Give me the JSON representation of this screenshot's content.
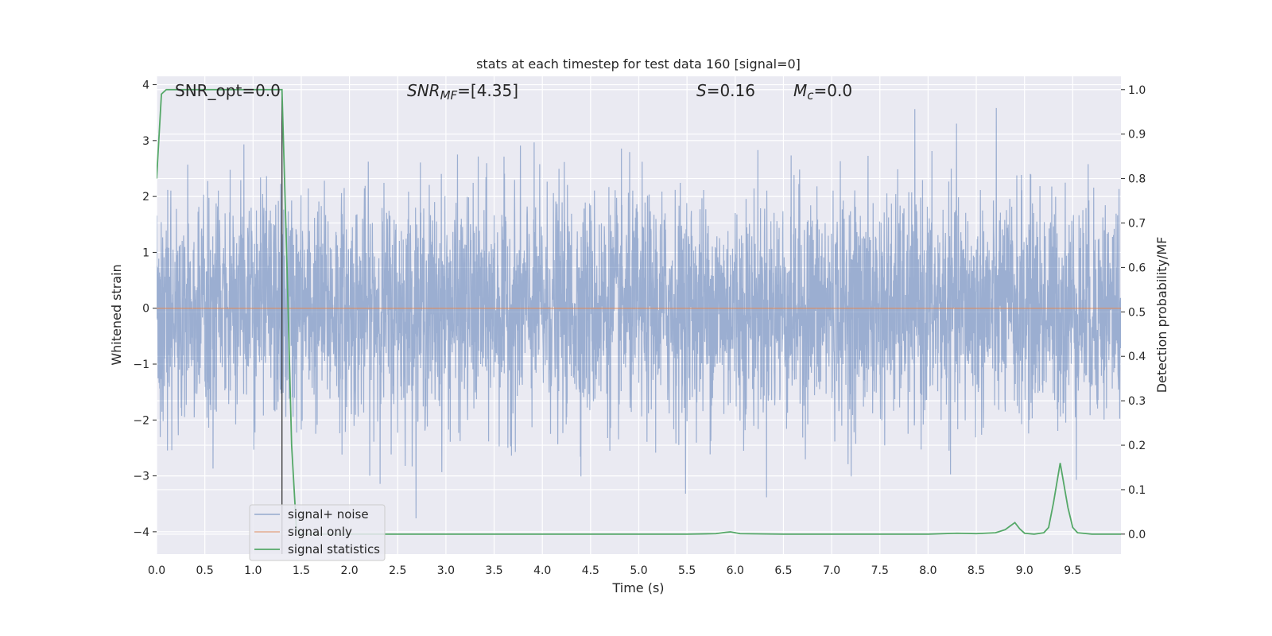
{
  "chart_data": {
    "type": "line",
    "title": "stats at each timestep for test data 160 [signal=0]",
    "xlabel": "Time (s)",
    "ylabel_left": "Whitened strain",
    "ylabel_right": "Detection probability/MF",
    "xlim": [
      0.0,
      10.0
    ],
    "ylim_left": [
      -4.4,
      4.15
    ],
    "ylim_right": [
      -0.045,
      1.03
    ],
    "x_ticks": [
      0.0,
      0.5,
      1.0,
      1.5,
      2.0,
      2.5,
      3.0,
      3.5,
      4.0,
      4.5,
      5.0,
      5.5,
      6.0,
      6.5,
      7.0,
      7.5,
      8.0,
      8.5,
      9.0,
      9.5
    ],
    "x_tick_labels": [
      "0.0",
      "0.5",
      "1.0",
      "1.5",
      "2.0",
      "2.5",
      "3.0",
      "3.5",
      "4.0",
      "4.5",
      "5.0",
      "5.5",
      "6.0",
      "6.5",
      "7.0",
      "7.5",
      "8.0",
      "8.5",
      "9.0",
      "9.5"
    ],
    "y_left_ticks": [
      4,
      3,
      2,
      1,
      0,
      -1,
      -2,
      -3,
      -4
    ],
    "y_left_tick_labels": [
      "4",
      "3",
      "2",
      "1",
      "0",
      "−1",
      "−2",
      "−3",
      "−4"
    ],
    "y_right_ticks": [
      1.0,
      0.9,
      0.8,
      0.7,
      0.6,
      0.5,
      0.4,
      0.3,
      0.2,
      0.1,
      0.0
    ],
    "y_right_tick_labels": [
      "1.0",
      "0.9",
      "0.8",
      "0.7",
      "0.6",
      "0.5",
      "0.4",
      "0.3",
      "0.2",
      "0.1",
      "0.0"
    ],
    "grid": true,
    "annotations": {
      "snr_opt": "SNR_opt=0.0",
      "snr_mf_base": "SNR",
      "snr_mf_sub": "MF",
      "snr_mf_tail": "=[4.35]",
      "s_var": "S",
      "s_tail": "=0.16",
      "mc_var": "M",
      "mc_sub": "c",
      "mc_tail": "=0.0"
    },
    "vertical_marker_x": 1.3,
    "legend": {
      "placement": "lower-left",
      "entries": [
        "signal+ noise",
        "signal only",
        "signal statistics"
      ]
    },
    "series": [
      {
        "name": "signal+ noise",
        "axis": "left",
        "color": "#4c72b0",
        "kind": "noise",
        "sample_rate_hz": 400,
        "std": 1.0,
        "clip": [
          -4.0,
          3.8
        ]
      },
      {
        "name": "signal only",
        "axis": "left",
        "color": "#dd8452",
        "x": [
          0.0,
          10.0
        ],
        "y": [
          0.0,
          0.0
        ]
      },
      {
        "name": "signal statistics",
        "axis": "right",
        "color": "#55a868",
        "x": [
          0.0,
          0.05,
          0.1,
          0.2,
          0.5,
          1.0,
          1.3,
          1.35,
          1.4,
          1.45,
          1.5,
          2.0,
          3.0,
          4.0,
          5.0,
          5.5,
          5.8,
          5.9,
          5.95,
          6.0,
          6.05,
          6.5,
          7.0,
          7.5,
          8.0,
          8.3,
          8.5,
          8.7,
          8.8,
          8.85,
          8.9,
          8.95,
          9.0,
          9.1,
          9.2,
          9.25,
          9.3,
          9.37,
          9.45,
          9.5,
          9.55,
          9.7,
          10.0
        ],
        "y": [
          0.8,
          0.99,
          1.0,
          1.0,
          1.0,
          1.0,
          1.0,
          0.62,
          0.2,
          0.01,
          0.0,
          0.0,
          0.0,
          0.0,
          0.0,
          0.0,
          0.001,
          0.004,
          0.005,
          0.003,
          0.001,
          0.0,
          0.0,
          0.0,
          0.0,
          0.002,
          0.001,
          0.003,
          0.01,
          0.018,
          0.026,
          0.012,
          0.002,
          0.0,
          0.003,
          0.015,
          0.07,
          0.16,
          0.06,
          0.015,
          0.003,
          0.0,
          0.0
        ]
      }
    ]
  }
}
